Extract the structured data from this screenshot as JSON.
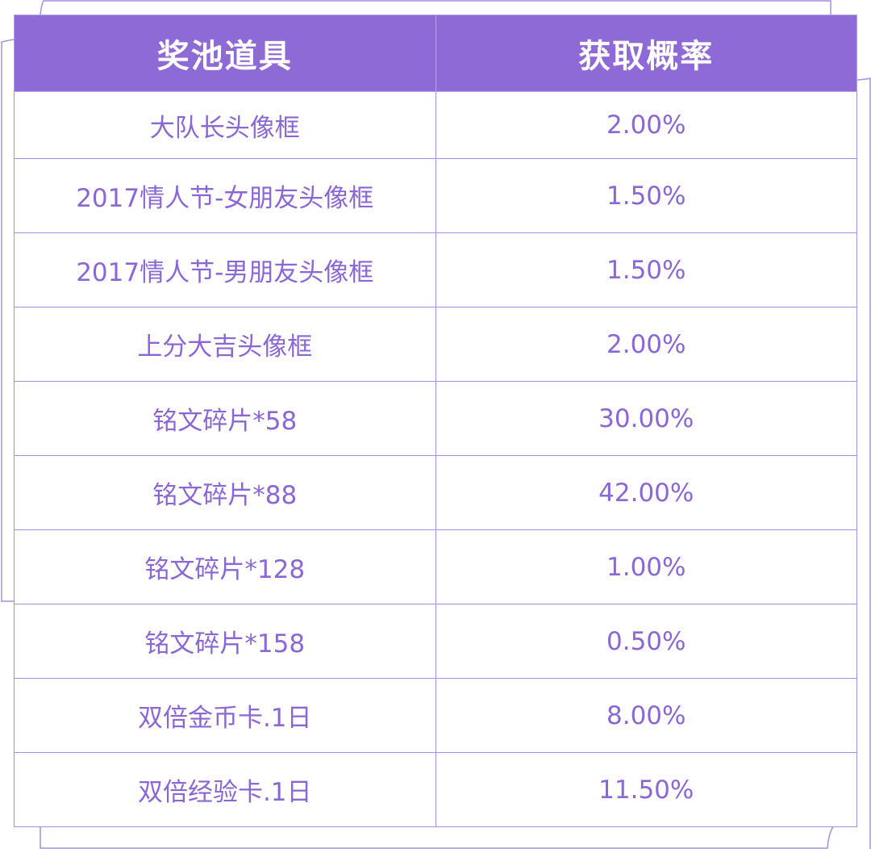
{
  "colors": {
    "header_bg": "#8e6ad6",
    "text": "#8a67d4",
    "border": "#a98de0"
  },
  "table": {
    "headers": [
      "奖池道具",
      "获取概率"
    ],
    "rows": [
      {
        "item": "大队长头像框",
        "prob": "2.00%"
      },
      {
        "item": "2017情人节-女朋友头像框",
        "prob": "1.50%"
      },
      {
        "item": "2017情人节-男朋友头像框",
        "prob": "1.50%"
      },
      {
        "item": "上分大吉头像框",
        "prob": "2.00%"
      },
      {
        "item": "铭文碎片*58",
        "prob": "30.00%"
      },
      {
        "item": "铭文碎片*88",
        "prob": "42.00%"
      },
      {
        "item": "铭文碎片*128",
        "prob": "1.00%"
      },
      {
        "item": "铭文碎片*158",
        "prob": "0.50%"
      },
      {
        "item": "双倍金币卡.1日",
        "prob": "8.00%"
      },
      {
        "item": "双倍经验卡.1日",
        "prob": "11.50%"
      }
    ]
  }
}
